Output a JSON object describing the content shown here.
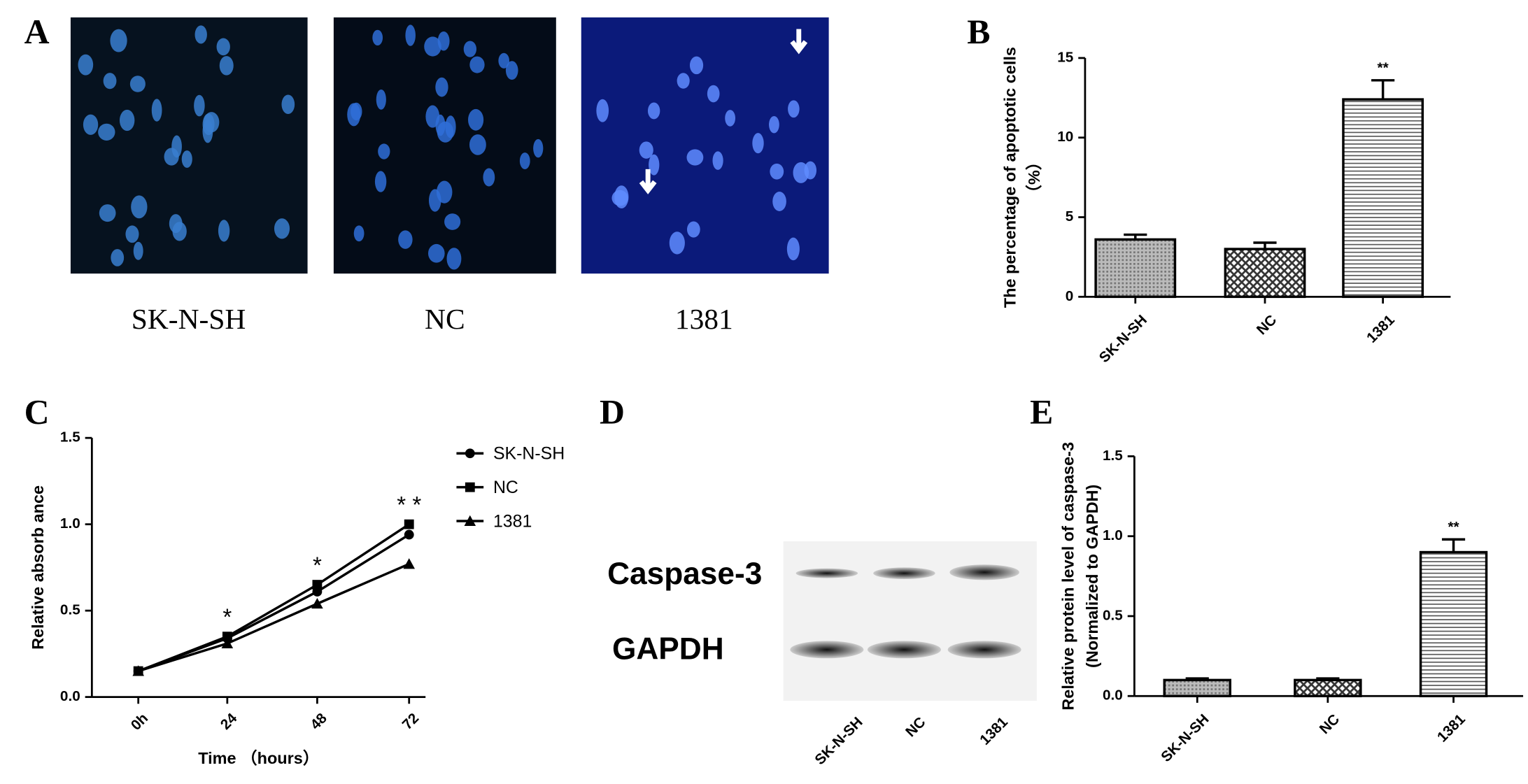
{
  "panel_labels": [
    "A",
    "B",
    "C",
    "D",
    "E"
  ],
  "images": {
    "labels": [
      "SK-N-SH",
      "NC",
      "1381"
    ]
  },
  "blot": {
    "rows": [
      "Caspase-3",
      "GAPDH"
    ],
    "lanes": [
      "SK-N-SH",
      "NC",
      "1381"
    ]
  },
  "chart_data": [
    {
      "type": "bar",
      "y_label": [
        "The percentage of apoptotic cells",
        "（%）"
      ],
      "categories": [
        "SK-N-SH",
        "NC",
        "1381"
      ],
      "values": [
        3.6,
        3.0,
        12.4
      ],
      "errors": [
        0.3,
        0.4,
        1.2
      ],
      "annotation": "**",
      "ylim": [
        0,
        15
      ],
      "yticks": [
        0,
        5,
        10,
        15
      ],
      "color": "#000000"
    },
    {
      "type": "line",
      "y_label": "Relative absorb ance",
      "x_label": "Time （hours）",
      "categories": [
        "0h",
        "24",
        "48",
        "72"
      ],
      "series": [
        {
          "name": "SK-N-SH",
          "color": "#000000",
          "values": [
            0.15,
            0.34,
            0.61,
            0.94
          ]
        },
        {
          "name": "NC",
          "color": "#000000",
          "values": [
            0.15,
            0.35,
            0.65,
            1.0
          ]
        },
        {
          "name": "1381",
          "color": "#000000",
          "values": [
            0.15,
            0.31,
            0.54,
            0.77
          ]
        }
      ],
      "annotations": [
        null,
        "*",
        "*",
        "* *"
      ],
      "ylim": [
        0,
        1.5
      ],
      "yticks": [
        {
          "value": 0,
          "label": "0.0"
        },
        0.5,
        {
          "value": 1,
          "label": "1.0"
        },
        1.5
      ]
    },
    {
      "type": "bar",
      "y_label": [
        "Relative protein level of caspase-3",
        "(Normalized to GAPDH)"
      ],
      "categories": [
        "SK-N-SH",
        "NC",
        "1381"
      ],
      "values": [
        0.1,
        0.1,
        0.9
      ],
      "errors": [
        0.01,
        0.01,
        0.08
      ],
      "annotation": "**",
      "ylim": [
        0,
        1.5
      ],
      "yticks": [
        {
          "value": 0,
          "label": "0.0"
        },
        0.5,
        {
          "value": 1,
          "label": "1.0"
        },
        1.5
      ],
      "color": "#000000"
    }
  ]
}
